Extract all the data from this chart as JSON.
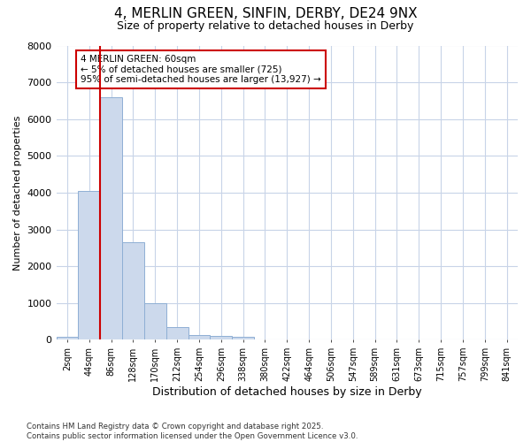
{
  "title_line1": "4, MERLIN GREEN, SINFIN, DERBY, DE24 9NX",
  "title_line2": "Size of property relative to detached houses in Derby",
  "xlabel": "Distribution of detached houses by size in Derby",
  "ylabel": "Number of detached properties",
  "categories": [
    "2sqm",
    "44sqm",
    "86sqm",
    "128sqm",
    "170sqm",
    "212sqm",
    "254sqm",
    "296sqm",
    "338sqm",
    "380sqm",
    "422sqm",
    "464sqm",
    "506sqm",
    "547sqm",
    "589sqm",
    "631sqm",
    "673sqm",
    "715sqm",
    "757sqm",
    "799sqm",
    "841sqm"
  ],
  "values": [
    70,
    4050,
    6600,
    2650,
    1000,
    350,
    120,
    100,
    70,
    0,
    0,
    0,
    0,
    0,
    0,
    0,
    0,
    0,
    0,
    0,
    0
  ],
  "bar_color": "#ccd9ec",
  "bar_edgecolor": "#8fafd4",
  "vline_x": 1.5,
  "vline_color": "#cc0000",
  "annotation_text": "4 MERLIN GREEN: 60sqm\n← 5% of detached houses are smaller (725)\n95% of semi-detached houses are larger (13,927) →",
  "annotation_box_edgecolor": "#cc0000",
  "annotation_box_facecolor": "white",
  "ylim": [
    0,
    8000
  ],
  "yticks": [
    0,
    1000,
    2000,
    3000,
    4000,
    5000,
    6000,
    7000,
    8000
  ],
  "grid_color": "#c8d4e8",
  "background_color": "#ffffff",
  "footnote": "Contains HM Land Registry data © Crown copyright and database right 2025.\nContains public sector information licensed under the Open Government Licence v3.0."
}
